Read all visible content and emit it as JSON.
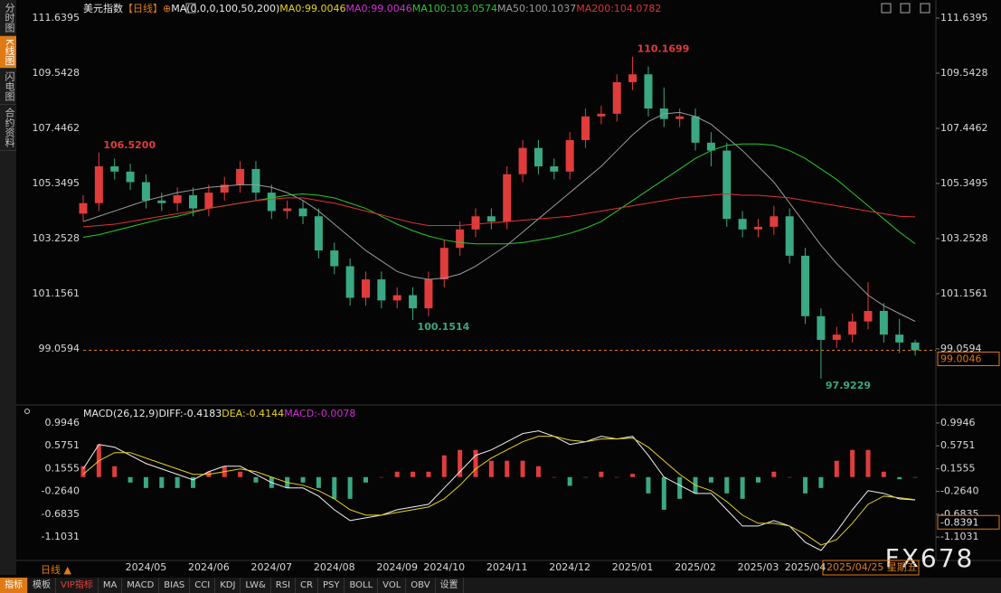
{
  "sidebar": [
    "分时图",
    "K线图",
    "闪电图",
    "合约资料"
  ],
  "toolbar": [
    "指标",
    "模板",
    "VIP指标",
    "MA",
    "MACD",
    "BIAS",
    "CCI",
    "KDJ",
    "LW&",
    "RSI",
    "CR",
    "PSY",
    "BOLL",
    "VOL",
    "OBV",
    "设置"
  ],
  "period_switch": "日线 ▲",
  "cursor_date": "2025/04/25 星期五",
  "watermark": "FX678",
  "chart_data": [
    {
      "type": "candlestick",
      "title": "美元指数",
      "period": "【日线】",
      "add_icon": "⊕",
      "ma_params": "MA(0,0,0,100,50,200)",
      "categories": [
        null,
        null,
        null,
        null,
        "2024/05",
        null,
        null,
        null,
        "2024/06",
        null,
        null,
        null,
        "2024/07",
        null,
        null,
        null,
        "2024/08",
        null,
        null,
        null,
        "2024/09",
        null,
        null,
        "2024/10",
        null,
        null,
        null,
        "2024/11",
        null,
        null,
        null,
        "2024/12",
        null,
        null,
        null,
        "2025/01",
        null,
        null,
        null,
        "2025/02",
        null,
        null,
        null,
        "2025/03",
        null,
        null,
        "2025/04",
        null,
        null,
        null,
        null,
        null,
        null,
        null
      ],
      "open": [
        104.2,
        104.6,
        106.0,
        105.8,
        105.4,
        104.7,
        104.6,
        104.9,
        104.4,
        105.0,
        105.3,
        105.9,
        105.0,
        104.3,
        104.4,
        104.1,
        102.8,
        102.2,
        101.0,
        101.7,
        100.9,
        101.1,
        100.6,
        101.7,
        102.9,
        103.6,
        104.1,
        103.9,
        105.7,
        106.7,
        106.0,
        105.8,
        107.0,
        107.9,
        108.0,
        109.2,
        109.5,
        108.2,
        107.8,
        107.9,
        106.9,
        106.6,
        104.0,
        103.6,
        103.7,
        104.1,
        102.6,
        100.3,
        99.4,
        99.6,
        100.1,
        100.5,
        99.6,
        99.3
      ],
      "high": [
        104.9,
        106.52,
        106.3,
        106.1,
        105.7,
        105.0,
        105.2,
        105.2,
        105.3,
        105.6,
        106.2,
        106.2,
        105.3,
        104.7,
        104.7,
        104.4,
        103.1,
        102.5,
        102.0,
        102.0,
        101.4,
        101.4,
        102.0,
        103.2,
        103.9,
        104.4,
        104.4,
        106.0,
        107.0,
        107.0,
        106.3,
        107.3,
        108.2,
        108.3,
        109.5,
        110.1699,
        109.8,
        109.0,
        108.2,
        108.2,
        107.3,
        106.9,
        104.3,
        104.0,
        104.5,
        104.4,
        102.9,
        100.6,
        99.9,
        100.4,
        101.6,
        100.8,
        100.2,
        99.4
      ],
      "low": [
        103.9,
        104.3,
        105.5,
        105.1,
        104.4,
        104.3,
        104.3,
        104.1,
        104.1,
        104.7,
        105.0,
        104.7,
        104.0,
        104.0,
        103.8,
        102.5,
        101.9,
        100.7,
        100.7,
        100.6,
        100.6,
        100.1514,
        100.3,
        101.4,
        102.6,
        103.3,
        103.6,
        103.6,
        105.4,
        105.7,
        105.5,
        105.5,
        106.7,
        107.6,
        107.7,
        108.9,
        107.9,
        107.5,
        107.5,
        106.6,
        106.0,
        103.7,
        103.3,
        103.3,
        103.4,
        102.3,
        100.0,
        97.9229,
        99.1,
        99.3,
        99.8,
        99.3,
        98.9,
        98.8
      ],
      "close": [
        104.6,
        106.0,
        105.8,
        105.4,
        104.7,
        104.6,
        104.9,
        104.4,
        105.0,
        105.3,
        105.9,
        105.0,
        104.3,
        104.4,
        104.1,
        102.8,
        102.2,
        101.0,
        101.7,
        100.9,
        101.1,
        100.6,
        101.7,
        102.9,
        103.6,
        104.1,
        103.9,
        105.7,
        106.7,
        106.0,
        105.8,
        107.0,
        107.9,
        108.0,
        109.2,
        109.5,
        108.2,
        107.8,
        107.9,
        106.9,
        106.6,
        104.0,
        103.6,
        103.7,
        104.1,
        102.6,
        100.3,
        99.4,
        99.6,
        100.1,
        100.5,
        99.6,
        99.3,
        99.0046
      ],
      "high_labels": [
        null,
        "106.5200",
        null,
        null,
        null,
        null,
        null,
        null,
        null,
        null,
        null,
        null,
        null,
        null,
        null,
        null,
        null,
        null,
        null,
        null,
        null,
        null,
        null,
        null,
        null,
        null,
        null,
        null,
        null,
        null,
        null,
        null,
        null,
        null,
        null,
        "110.1699",
        null,
        null,
        null,
        null,
        null,
        null,
        null,
        null,
        null,
        null,
        null,
        null,
        null,
        null,
        null,
        null,
        null,
        null
      ],
      "low_labels": [
        null,
        null,
        null,
        null,
        null,
        null,
        null,
        null,
        null,
        null,
        null,
        null,
        null,
        null,
        null,
        null,
        null,
        null,
        null,
        null,
        null,
        "100.1514",
        null,
        null,
        null,
        null,
        null,
        null,
        null,
        null,
        null,
        null,
        null,
        null,
        null,
        null,
        null,
        null,
        null,
        null,
        null,
        null,
        null,
        null,
        null,
        null,
        null,
        "97.9229",
        null,
        null,
        null,
        null,
        null,
        null
      ],
      "up_color": "#e03c3c",
      "down_color": "#3aa883",
      "legend": [
        {
          "name": "MA0:",
          "color": "#e6d21c"
        },
        {
          "name": "MA0:",
          "color": "#d62bd6"
        }
      ],
      "series": [
        {
          "name": "MA100:",
          "color": "#28c828",
          "values": [
            103.3,
            103.4,
            103.55,
            103.7,
            103.85,
            104.0,
            104.1,
            104.25,
            104.4,
            104.5,
            104.6,
            104.7,
            104.8,
            104.9,
            104.95,
            104.9,
            104.8,
            104.6,
            104.4,
            104.1,
            103.8,
            103.55,
            103.35,
            103.2,
            103.1,
            103.05,
            103.05,
            103.05,
            103.1,
            103.2,
            103.3,
            103.45,
            103.65,
            103.9,
            104.3,
            104.7,
            105.1,
            105.5,
            105.9,
            106.3,
            106.6,
            106.8,
            106.85,
            106.85,
            106.8,
            106.6,
            106.3,
            105.9,
            105.5,
            105.0,
            104.5,
            104.0,
            103.5,
            103.0574
          ]
        },
        {
          "name": "MA50:",
          "color": "#9a9a9a",
          "values": [
            103.9,
            104.1,
            104.3,
            104.5,
            104.7,
            104.85,
            105.0,
            105.1,
            105.2,
            105.25,
            105.3,
            105.3,
            105.2,
            105.0,
            104.7,
            104.3,
            103.8,
            103.3,
            102.8,
            102.4,
            102.0,
            101.8,
            101.7,
            101.75,
            101.9,
            102.2,
            102.6,
            103.0,
            103.5,
            104.0,
            104.5,
            105.0,
            105.5,
            106.0,
            106.6,
            107.2,
            107.7,
            108.0,
            108.05,
            107.9,
            107.6,
            107.1,
            106.6,
            106.0,
            105.4,
            104.6,
            103.8,
            103.0,
            102.3,
            101.7,
            101.1,
            100.7,
            100.4,
            100.1037
          ]
        },
        {
          "name": "MA200:",
          "color": "#e03232",
          "values": [
            103.7,
            103.75,
            103.8,
            103.9,
            104.0,
            104.1,
            104.2,
            104.3,
            104.4,
            104.5,
            104.6,
            104.7,
            104.75,
            104.8,
            104.8,
            104.7,
            104.6,
            104.45,
            104.3,
            104.15,
            104.0,
            103.85,
            103.75,
            103.75,
            103.75,
            103.8,
            103.85,
            103.9,
            103.95,
            104.0,
            104.05,
            104.1,
            104.2,
            104.3,
            104.4,
            104.5,
            104.6,
            104.7,
            104.8,
            104.85,
            104.9,
            104.95,
            104.9,
            104.9,
            104.85,
            104.8,
            104.7,
            104.6,
            104.5,
            104.4,
            104.3,
            104.2,
            104.1,
            104.0782
          ]
        }
      ],
      "current_color": "#e07a14",
      "ylim": [
        97.37,
        111.6395
      ],
      "yticks": [
        111.6395,
        109.5428,
        107.4462,
        105.3495,
        103.2528,
        101.1561,
        99.0594
      ]
    },
    {
      "type": "macd",
      "title": "MACD(26,12,9)",
      "series": [
        {
          "name": "DIFF:",
          "color": "#f0f0f0",
          "values": [
            0.15,
            0.6,
            0.55,
            0.4,
            0.25,
            0.15,
            0.05,
            -0.05,
            0.1,
            0.2,
            0.2,
            0.05,
            -0.1,
            -0.2,
            -0.2,
            -0.35,
            -0.6,
            -0.8,
            -0.75,
            -0.7,
            -0.6,
            -0.55,
            -0.5,
            -0.2,
            0.1,
            0.4,
            0.5,
            0.65,
            0.8,
            0.85,
            0.75,
            0.6,
            0.65,
            0.75,
            0.7,
            0.75,
            0.4,
            0.0,
            -0.15,
            -0.3,
            -0.3,
            -0.6,
            -0.9,
            -0.9,
            -0.8,
            -0.9,
            -1.2,
            -1.35,
            -1.0,
            -0.6,
            -0.25,
            -0.3,
            -0.4,
            -0.4183
          ]
        },
        {
          "name": "DEA:",
          "color": "#e6d21c",
          "values": [
            0.05,
            0.3,
            0.45,
            0.45,
            0.35,
            0.25,
            0.15,
            0.05,
            0.05,
            0.1,
            0.15,
            0.1,
            0.0,
            -0.1,
            -0.15,
            -0.25,
            -0.4,
            -0.6,
            -0.7,
            -0.7,
            -0.65,
            -0.6,
            -0.55,
            -0.4,
            -0.15,
            0.15,
            0.35,
            0.5,
            0.65,
            0.75,
            0.75,
            0.68,
            0.65,
            0.7,
            0.7,
            0.72,
            0.55,
            0.3,
            0.05,
            -0.15,
            -0.25,
            -0.45,
            -0.7,
            -0.85,
            -0.85,
            -0.9,
            -1.05,
            -1.25,
            -1.15,
            -0.85,
            -0.5,
            -0.35,
            -0.38,
            -0.4144
          ]
        }
      ],
      "histogram": {
        "name": "MACD:",
        "color": "#d62bd6",
        "up_color": "#e03c3c",
        "down_color": "#3aa883",
        "values": [
          0.2,
          0.6,
          0.2,
          -0.1,
          -0.2,
          -0.2,
          -0.2,
          -0.2,
          0.1,
          0.2,
          0.1,
          -0.1,
          -0.2,
          -0.2,
          -0.1,
          -0.2,
          -0.4,
          -0.4,
          -0.1,
          0.0,
          0.1,
          0.1,
          0.1,
          0.4,
          0.5,
          0.5,
          0.3,
          0.3,
          0.3,
          0.2,
          0.0,
          -0.16,
          0.0,
          0.1,
          0.0,
          0.06,
          -0.3,
          -0.6,
          -0.4,
          -0.3,
          -0.1,
          -0.3,
          -0.4,
          -0.1,
          0.1,
          0.0,
          -0.3,
          -0.2,
          0.3,
          0.5,
          0.5,
          0.1,
          -0.04,
          -0.0078
        ]
      },
      "marker": -0.8391,
      "ylim": [
        -1.45,
        1.21
      ],
      "yticks": [
        0.9946,
        0.5751,
        0.1555,
        {
          "value": -0.264,
          "label": "-0.2640"
        },
        -0.6835,
        -1.1031
      ]
    }
  ]
}
